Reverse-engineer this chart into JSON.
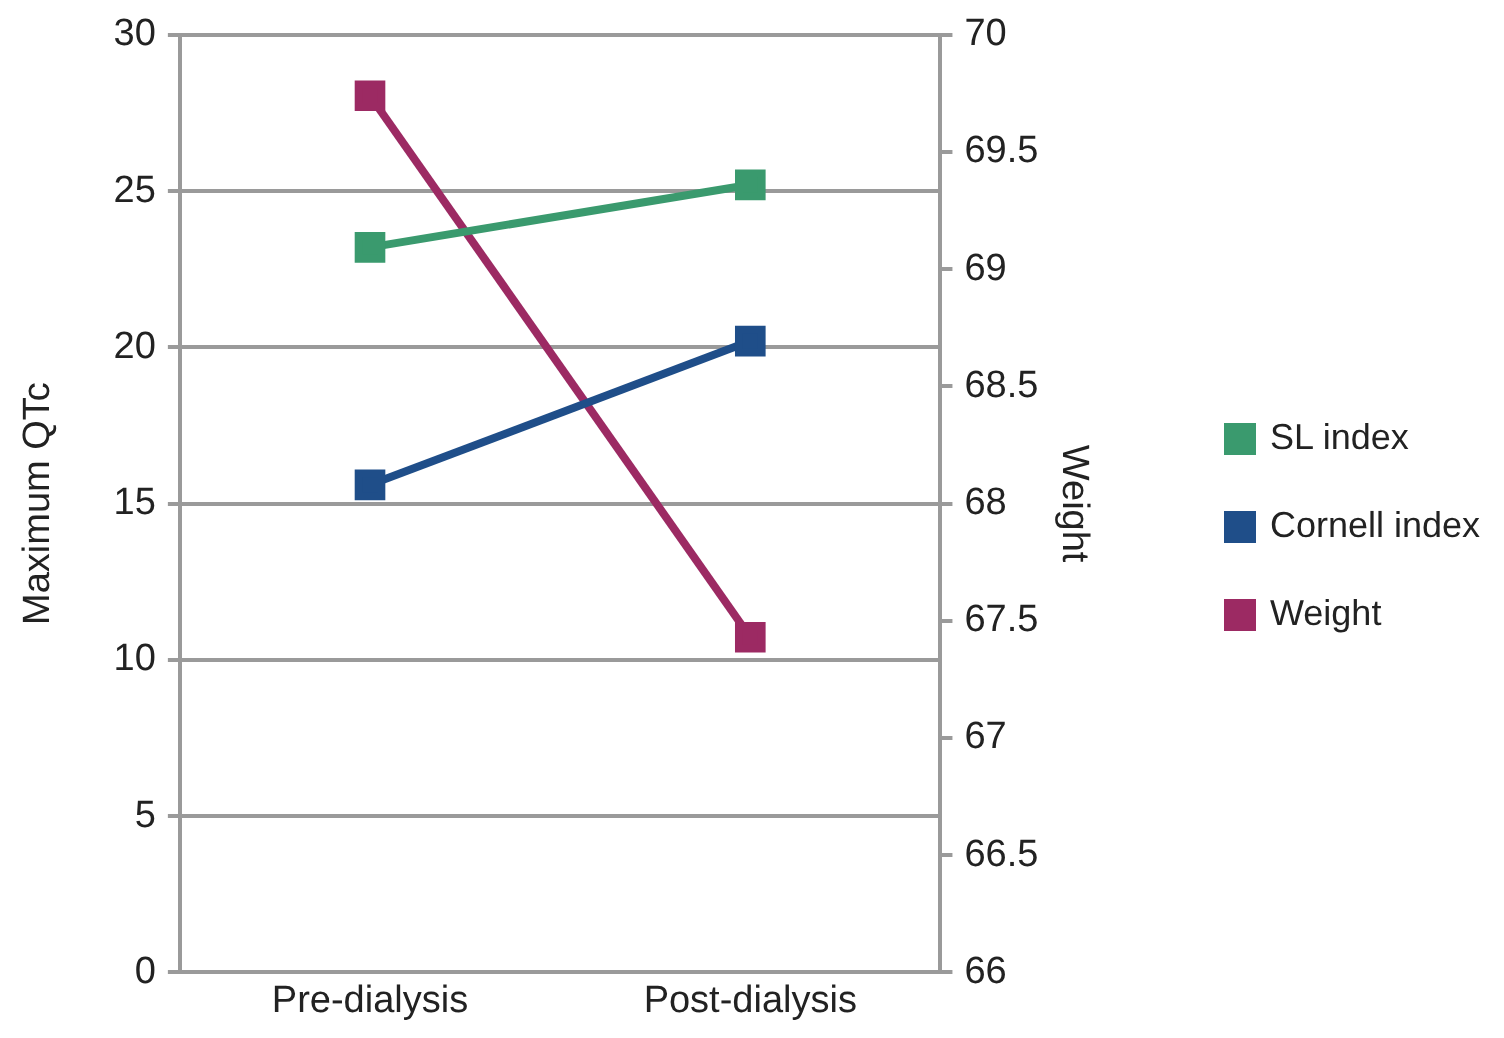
{
  "chart_data": {
    "type": "line",
    "categories": [
      "Pre-dialysis",
      "Post-dialysis"
    ],
    "ylabel": "Maximum QTc",
    "y2label": "Weight",
    "ylim": [
      0,
      30
    ],
    "yticks": [
      0,
      5,
      10,
      15,
      20,
      25,
      30
    ],
    "y2lim": [
      66,
      70
    ],
    "y2ticks": [
      66,
      66.5,
      67,
      67.5,
      68,
      68.5,
      69,
      69.5,
      70
    ],
    "grid": "y",
    "legend": "right",
    "marker": "square",
    "series": [
      {
        "name": "SL index",
        "color": "#3a9a6e",
        "values": [
          23.2,
          25.2
        ]
      },
      {
        "name": "Cornell index",
        "color": "#1f4e89",
        "values": [
          15.6,
          20.2
        ]
      },
      {
        "name": "Weight",
        "color": "#9c2a63",
        "values": [
          69.74,
          67.43
        ],
        "axis": "y2"
      }
    ]
  }
}
